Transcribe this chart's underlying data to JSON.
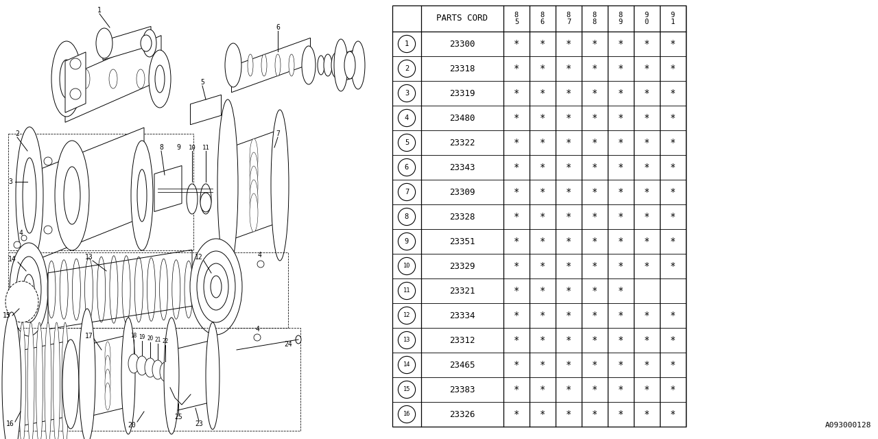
{
  "rows": [
    {
      "num": 1,
      "code": "23300",
      "marks": [
        true,
        true,
        true,
        true,
        true,
        true,
        true
      ]
    },
    {
      "num": 2,
      "code": "23318",
      "marks": [
        true,
        true,
        true,
        true,
        true,
        true,
        true
      ]
    },
    {
      "num": 3,
      "code": "23319",
      "marks": [
        true,
        true,
        true,
        true,
        true,
        true,
        true
      ]
    },
    {
      "num": 4,
      "code": "23480",
      "marks": [
        true,
        true,
        true,
        true,
        true,
        true,
        true
      ]
    },
    {
      "num": 5,
      "code": "23322",
      "marks": [
        true,
        true,
        true,
        true,
        true,
        true,
        true
      ]
    },
    {
      "num": 6,
      "code": "23343",
      "marks": [
        true,
        true,
        true,
        true,
        true,
        true,
        true
      ]
    },
    {
      "num": 7,
      "code": "23309",
      "marks": [
        true,
        true,
        true,
        true,
        true,
        true,
        true
      ]
    },
    {
      "num": 8,
      "code": "23328",
      "marks": [
        true,
        true,
        true,
        true,
        true,
        true,
        true
      ]
    },
    {
      "num": 9,
      "code": "23351",
      "marks": [
        true,
        true,
        true,
        true,
        true,
        true,
        true
      ]
    },
    {
      "num": 10,
      "code": "23329",
      "marks": [
        true,
        true,
        true,
        true,
        true,
        true,
        true
      ]
    },
    {
      "num": 11,
      "code": "23321",
      "marks": [
        true,
        true,
        true,
        true,
        true,
        false,
        false
      ]
    },
    {
      "num": 12,
      "code": "23334",
      "marks": [
        true,
        true,
        true,
        true,
        true,
        true,
        true
      ]
    },
    {
      "num": 13,
      "code": "23312",
      "marks": [
        true,
        true,
        true,
        true,
        true,
        true,
        true
      ]
    },
    {
      "num": 14,
      "code": "23465",
      "marks": [
        true,
        true,
        true,
        true,
        true,
        true,
        true
      ]
    },
    {
      "num": 15,
      "code": "23383",
      "marks": [
        true,
        true,
        true,
        true,
        true,
        true,
        true
      ]
    },
    {
      "num": 16,
      "code": "23326",
      "marks": [
        true,
        true,
        true,
        true,
        true,
        true,
        true
      ]
    }
  ],
  "year_labels": [
    "8\n5",
    "8\n6",
    "8\n7",
    "8\n8",
    "8\n9",
    "9\n0",
    "9\n1"
  ],
  "bg_color": "#ffffff",
  "line_color": "#000000",
  "text_color": "#000000",
  "footer_code": "A093000128"
}
